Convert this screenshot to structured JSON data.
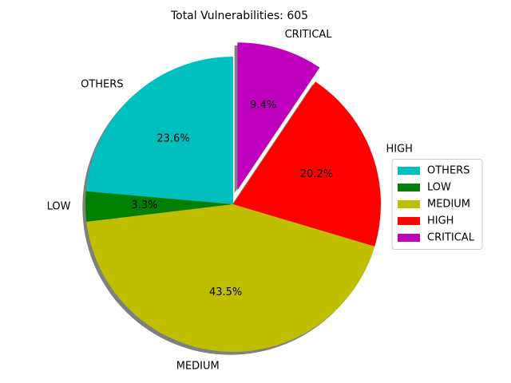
{
  "chart_data": {
    "type": "pie",
    "title": "Total Vulnerabilities: 605",
    "categories": [
      "OTHERS",
      "LOW",
      "MEDIUM",
      "HIGH",
      "CRITICAL"
    ],
    "values": [
      23.6,
      3.3,
      43.5,
      20.2,
      9.4
    ],
    "value_labels": [
      "23.6%",
      "3.3%",
      "43.5%",
      "20.2%",
      "9.4%"
    ],
    "colors": [
      "#00bfbf",
      "#008000",
      "#bfbf00",
      "#ff0000",
      "#bf00bf"
    ],
    "explode": [
      0,
      0,
      0,
      0,
      0.1
    ],
    "shadow": true,
    "legend": "right"
  }
}
